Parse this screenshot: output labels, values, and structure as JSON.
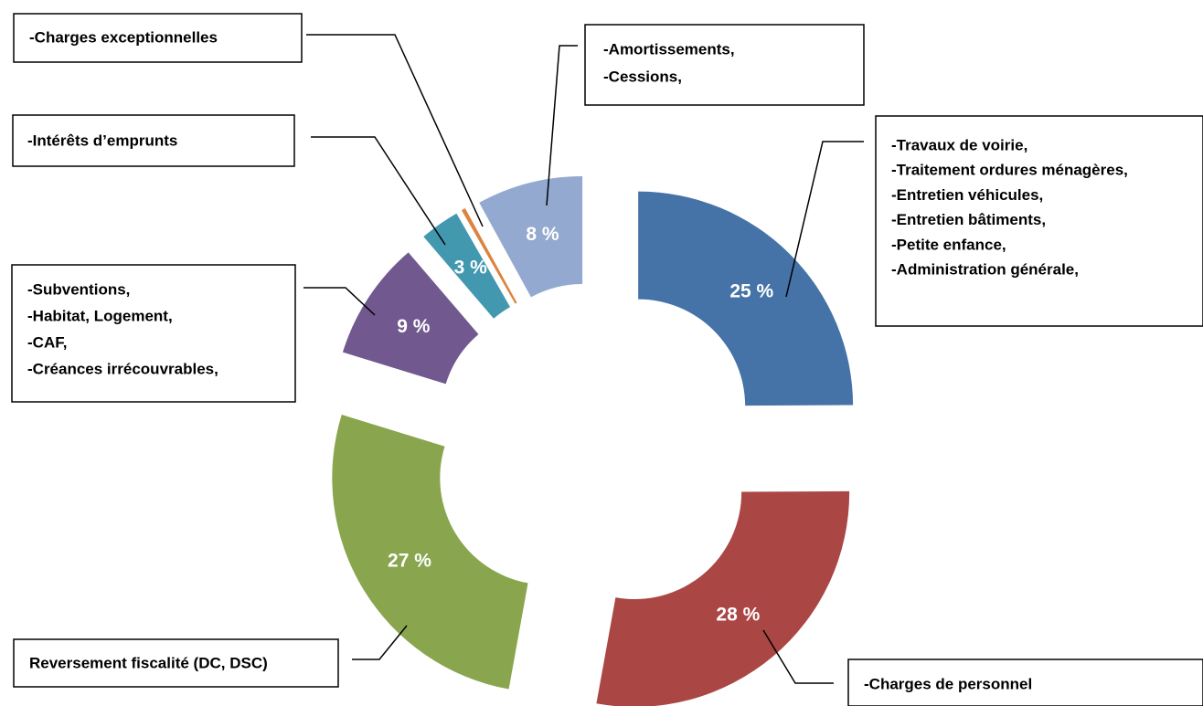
{
  "chart_data": {
    "type": "donut",
    "categories": [
      [
        "-Travaux de voirie,",
        "-Traitement ordures ménagères,",
        "-Entretien véhicules,",
        "-Entretien bâtiments,",
        "-Petite enfance,",
        "-Administration générale,"
      ],
      [
        "-Charges de personnel"
      ],
      [
        "Reversement fiscalité (DC, DSC)"
      ],
      [
        "-Subventions,",
        "-Habitat, Logement,",
        "-CAF,",
        "-Créances irrécouvrables,"
      ],
      [
        "-Intérêts d’emprunts"
      ],
      [
        "-Charges exceptionnelles"
      ],
      [
        "-Amortissements,",
        "-Cessions,"
      ]
    ],
    "values": [
      25,
      28,
      27,
      9,
      3,
      0.3,
      8
    ],
    "value_labels": [
      "25 %",
      "28 %",
      "27 %",
      "9 %",
      "3 %",
      null,
      "8 %"
    ],
    "colors": [
      "#4573a7",
      "#aa4644",
      "#89a54e",
      "#71588f",
      "#4298af",
      "#db843d",
      "#93a9cf"
    ]
  }
}
